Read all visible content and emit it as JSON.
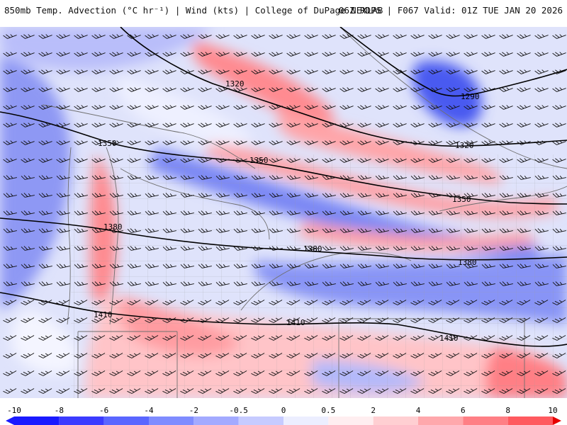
{
  "header": {
    "title_left": "850mb Temp. Advection (°C hr⁻¹) | Wind (kts) | College of DuPage NEXLAB",
    "title_right": "06Z RDPS | F067 Valid: 01Z TUE JAN 20 2026"
  },
  "contours": [
    {
      "label": "1290"
    },
    {
      "label": "1320"
    },
    {
      "label": "1350"
    },
    {
      "label": "1380"
    },
    {
      "label": "1410"
    }
  ],
  "colorbar": {
    "ticks": [
      "-10",
      "-8",
      "-6",
      "-4",
      "-2",
      "-0.5",
      "0",
      "0.5",
      "2",
      "4",
      "6",
      "8",
      "10"
    ],
    "colors": [
      "#1a1aff",
      "#3b3bff",
      "#5a66ff",
      "#7f8cff",
      "#a3aaff",
      "#c6cbff",
      "#eceeff",
      "#ffeef0",
      "#ffcfd2",
      "#ffa8ac",
      "#ff7f85",
      "#ff5a5f",
      "#ff2a2a",
      "#e60000"
    ]
  },
  "colors": {
    "cold": "#5c6cff",
    "warm": "#ff6f75",
    "neutral": "#f7f7fb",
    "borders": "#6f6f6f",
    "contours": "#000000",
    "barbs": "#111111"
  }
}
